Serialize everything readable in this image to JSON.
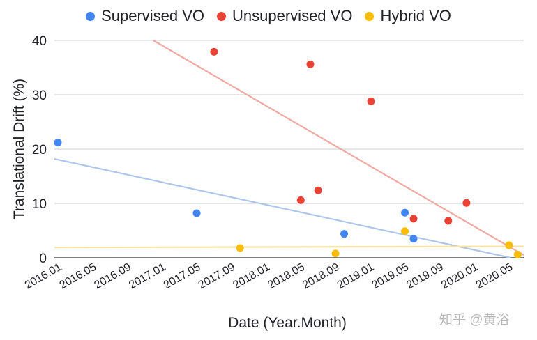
{
  "chart_data": {
    "type": "scatter",
    "title": "",
    "xlabel": "Date (Year.Month)",
    "ylabel": "Translational Drift (%)",
    "ylim": [
      0,
      40
    ],
    "yticks": [
      0,
      10,
      20,
      30,
      40
    ],
    "x_unit": "months since 2016.01",
    "xlim": [
      -0.6,
      53.5
    ],
    "xticks": [
      {
        "m": 0,
        "label": "2016.01"
      },
      {
        "m": 4,
        "label": "2016.05"
      },
      {
        "m": 8,
        "label": "2016.09"
      },
      {
        "m": 12,
        "label": "2017.01"
      },
      {
        "m": 16,
        "label": "2017.05"
      },
      {
        "m": 20,
        "label": "2017.09"
      },
      {
        "m": 24,
        "label": "2018.01"
      },
      {
        "m": 28,
        "label": "2018.05"
      },
      {
        "m": 32,
        "label": "2018.09"
      },
      {
        "m": 36,
        "label": "2019.01"
      },
      {
        "m": 40,
        "label": "2019.05"
      },
      {
        "m": 44,
        "label": "2019.09"
      },
      {
        "m": 48,
        "label": "2020.01"
      },
      {
        "m": 52,
        "label": "2020.05"
      }
    ],
    "grid": true,
    "legend_position": "top-center",
    "series": [
      {
        "name": "Supervised VO",
        "color": "#4285f4",
        "trend_color": "#aec6eb",
        "points": [
          {
            "date": "2016.01",
            "m": -0.2,
            "y": 21.2
          },
          {
            "date": "2017.05",
            "m": 15.8,
            "y": 8.2
          },
          {
            "date": "2018.10",
            "m": 32.8,
            "y": 4.4
          },
          {
            "date": "2019.05",
            "m": 39.8,
            "y": 8.3
          },
          {
            "date": "2019.06",
            "m": 40.8,
            "y": 3.5
          }
        ],
        "trendline": [
          {
            "m": -0.6,
            "y": 18.2
          },
          {
            "m": 52.0,
            "y": 0
          }
        ]
      },
      {
        "name": "Unsupervised VO",
        "color": "#ea4335",
        "trend_color": "#f0a9a2",
        "points": [
          {
            "date": "2017.07",
            "m": 17.8,
            "y": 37.9
          },
          {
            "date": "2018.05",
            "m": 27.8,
            "y": 10.6
          },
          {
            "date": "2018.06",
            "m": 28.9,
            "y": 35.6
          },
          {
            "date": "2018.07",
            "m": 29.8,
            "y": 12.4
          },
          {
            "date": "2019.01",
            "m": 35.9,
            "y": 28.8
          },
          {
            "date": "2019.06",
            "m": 40.8,
            "y": 7.2
          },
          {
            "date": "2019.10",
            "m": 44.8,
            "y": 6.8
          },
          {
            "date": "2019.12",
            "m": 46.9,
            "y": 10.1
          }
        ],
        "trendline": [
          {
            "m": 10.8,
            "y": 40
          },
          {
            "m": 53.5,
            "y": 0.5
          }
        ]
      },
      {
        "name": "Hybrid VO",
        "color": "#fbbc04",
        "trend_color": "#f7e3a1",
        "points": [
          {
            "date": "2017.10",
            "m": 20.8,
            "y": 1.8
          },
          {
            "date": "2018.09",
            "m": 31.8,
            "y": 0.8
          },
          {
            "date": "2019.05",
            "m": 39.8,
            "y": 4.9
          },
          {
            "date": "2020.05",
            "m": 51.8,
            "y": 2.3
          },
          {
            "date": "2020.06",
            "m": 52.8,
            "y": 0.6
          }
        ],
        "trendline": [
          {
            "m": -0.6,
            "y": 1.9
          },
          {
            "m": 53.5,
            "y": 2.1
          }
        ]
      }
    ]
  },
  "watermark": "知乎 @黄浴"
}
